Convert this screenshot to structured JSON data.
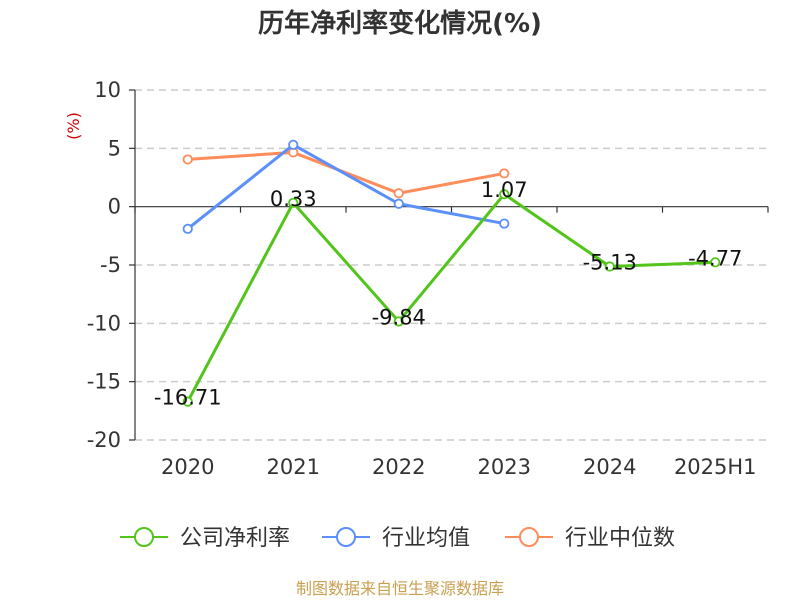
{
  "chart_data": {
    "type": "line",
    "title": "历年净利率变化情况(%)",
    "ylabel": "(%)",
    "categories": [
      "2020",
      "2021",
      "2022",
      "2023",
      "2024",
      "2025H1"
    ],
    "ylim": [
      -20,
      10
    ],
    "yticks": [
      10,
      5,
      0,
      -5,
      -10,
      -15,
      -20
    ],
    "grid": true,
    "legend_position": "bottom",
    "series": [
      {
        "name": "公司净利率",
        "color": "#52c41a",
        "values": [
          -16.71,
          0.33,
          -9.84,
          1.07,
          -5.13,
          -4.77
        ],
        "labels": [
          "-16.71",
          "0.33",
          "-9.84",
          "1.07",
          "-5.13",
          "-4.77"
        ]
      },
      {
        "name": "行业均值",
        "color": "#5b8ff9",
        "values": [
          -1.9,
          5.3,
          0.25,
          -1.45,
          null,
          null
        ]
      },
      {
        "name": "行业中位数",
        "color": "#ff8c5a",
        "values": [
          4.05,
          4.65,
          1.15,
          2.85,
          null,
          null
        ]
      }
    ]
  },
  "footer": {
    "source": "制图数据来自恒生聚源数据库"
  }
}
